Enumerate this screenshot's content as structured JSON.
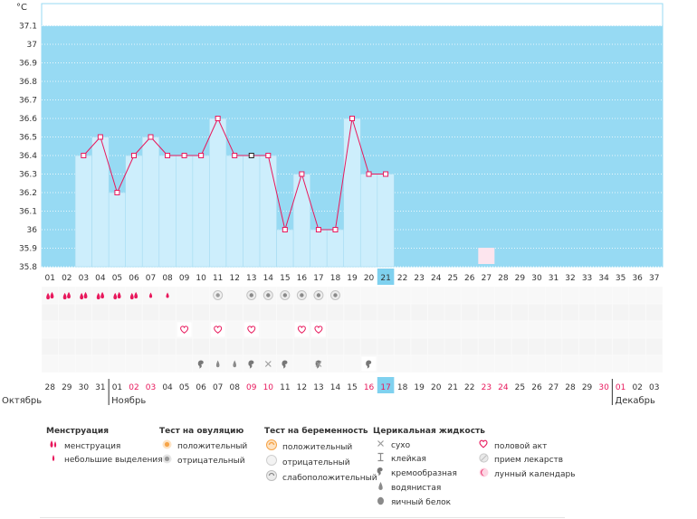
{
  "chart_data": {
    "type": "line",
    "unit_label": "°C",
    "ylim": [
      35.8,
      37.1
    ],
    "y_ticks": [
      "35.8",
      "35.9",
      "36",
      "36.1",
      "36.2",
      "36.3",
      "36.4",
      "36.5",
      "36.6",
      "36.7",
      "36.8",
      "36.9",
      "37",
      "37.1"
    ],
    "cycle_days": [
      "01",
      "02",
      "03",
      "04",
      "05",
      "06",
      "07",
      "08",
      "09",
      "10",
      "11",
      "12",
      "13",
      "14",
      "15",
      "16",
      "17",
      "18",
      "19",
      "20",
      "21",
      "22",
      "23",
      "24",
      "25",
      "26",
      "27",
      "28",
      "29",
      "30",
      "31",
      "32",
      "33",
      "34",
      "35",
      "36",
      "37"
    ],
    "current_cycle_day": "21",
    "temperatures": [
      null,
      null,
      36.4,
      36.5,
      36.2,
      36.4,
      36.5,
      36.4,
      36.4,
      36.4,
      36.6,
      36.4,
      36.4,
      36.4,
      36.0,
      36.3,
      36.0,
      36.0,
      36.6,
      36.3,
      36.3,
      null,
      null,
      null,
      null,
      null,
      null,
      null,
      null,
      null,
      null,
      null,
      null,
      null,
      null,
      null,
      null
    ],
    "selected_day_index": 12,
    "dates": [
      "28",
      "29",
      "30",
      "31",
      "01",
      "02",
      "03",
      "04",
      "05",
      "06",
      "07",
      "08",
      "09",
      "10",
      "11",
      "12",
      "13",
      "14",
      "15",
      "16",
      "17",
      "18",
      "19",
      "20",
      "21",
      "22",
      "23",
      "24",
      "25",
      "26",
      "27",
      "28",
      "29",
      "30",
      "01",
      "02",
      "03"
    ],
    "weekend_dates": [
      5,
      6,
      12,
      13,
      19,
      20,
      26,
      27,
      33,
      34
    ],
    "today_index": 20,
    "months": [
      "Октябрь",
      "Ноябрь",
      "Декабрь"
    ],
    "month_start_index": [
      0,
      4,
      34
    ],
    "markers": {
      "menstruation": [
        0,
        1,
        2,
        3,
        4,
        5
      ],
      "light_spotting": [
        6,
        7
      ],
      "pregnancy_negative": [
        10
      ],
      "pregnancy_weak": [
        12,
        13,
        14,
        15,
        16,
        17
      ],
      "intercourse": [
        8,
        10,
        12,
        15,
        16
      ],
      "cm_creamy": [
        9,
        12,
        14,
        16,
        19
      ],
      "cm_watery": [
        10,
        11
      ],
      "cm_dry": [
        13,
        16
      ],
      "lunar": [
        26
      ]
    }
  },
  "legend": {
    "menstruation": {
      "title": "Менструация",
      "items": [
        "менструация",
        "небольшие выделения"
      ]
    },
    "ovulation": {
      "title": "Тест на овуляцию",
      "items": [
        "положительный",
        "отрицательный"
      ]
    },
    "pregnancy": {
      "title": "Тест на беременность",
      "items": [
        "положительный",
        "отрицательный",
        "слабоположительный"
      ]
    },
    "cervical": {
      "title": "Церикальная жидкость",
      "items": [
        "сухо",
        "клейкая",
        "кремообразная",
        "водянистая",
        "яичный белок"
      ]
    },
    "other": {
      "items": [
        "половой акт",
        "прием лекарств",
        "лунный календарь"
      ]
    }
  },
  "colors": {
    "accent": "#e8185c",
    "fill": "#cdeefc",
    "band": "#97daf3",
    "today": "#7fd1ef",
    "weekend": "#e8185c"
  }
}
